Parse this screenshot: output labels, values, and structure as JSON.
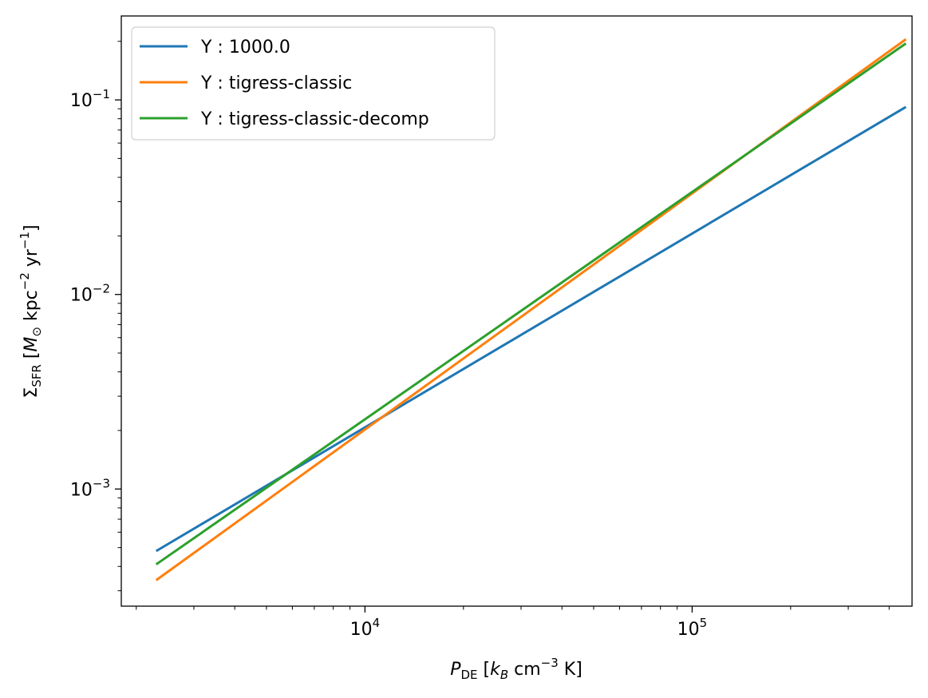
{
  "chart_data": {
    "type": "line",
    "xscale": "log",
    "yscale": "log",
    "xlim": [
      1800,
      470000
    ],
    "ylim": [
      0.00025,
      0.27
    ],
    "xlabel": "P_DE [k_B cm^-3 K]",
    "ylabel": "Σ_SFR [M_⊙ kpc^-2 yr^-1]",
    "xlabel_parts": {
      "sym": "P",
      "sub": "DE",
      "open": " [",
      "kb": "k",
      "kbsub": "B",
      "unit1": " cm",
      "sup": "−3",
      "unit2": " K]"
    },
    "ylabel_parts": {
      "sym": "Σ",
      "sub": "SFR",
      "open": " [",
      "m": "M",
      "msub": "⊙",
      "unit1": " kpc",
      "sup1": "−2",
      "unit2": " yr",
      "sup2": "−1",
      "close": "]"
    },
    "xticks": [
      {
        "value": 10000,
        "base": "10",
        "exp": "4"
      },
      {
        "value": 100000,
        "base": "10",
        "exp": "5"
      }
    ],
    "yticks": [
      {
        "value": 0.001,
        "base": "10",
        "exp": "−3"
      },
      {
        "value": 0.01,
        "base": "10",
        "exp": "−2"
      },
      {
        "value": 0.1,
        "base": "10",
        "exp": "−1"
      }
    ],
    "grid": false,
    "legend_position": "upper-left",
    "series": [
      {
        "name": "Y : 1000.0",
        "color": "#1f77b4",
        "x": [
          2300,
          450000
        ],
        "y": [
          0.00048,
          0.092
        ]
      },
      {
        "name": "Y : tigress-classic",
        "color": "#ff7f0e",
        "x": [
          2300,
          450000
        ],
        "y": [
          0.00034,
          0.205
        ]
      },
      {
        "name": "Y : tigress-classic-decomp",
        "color": "#2ca02c",
        "x": [
          2300,
          450000
        ],
        "y": [
          0.00041,
          0.195
        ]
      }
    ]
  }
}
